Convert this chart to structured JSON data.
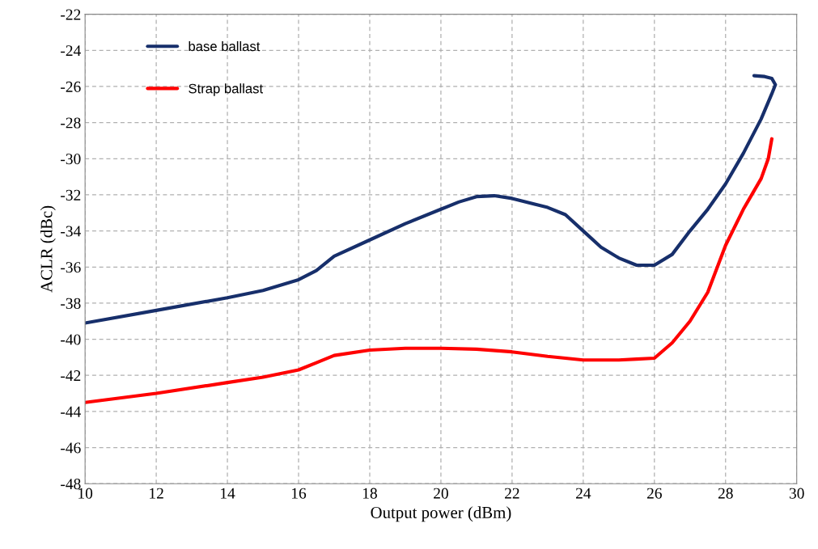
{
  "chart_data": {
    "type": "line",
    "xlabel": "Output power (dBm)",
    "ylabel": "ACLR (dBc)",
    "xlim": [
      10,
      30
    ],
    "xticks": [
      10,
      12,
      14,
      16,
      18,
      20,
      22,
      24,
      26,
      28,
      30
    ],
    "ylim": [
      -48,
      -22
    ],
    "yticks": [
      -48,
      -46,
      -44,
      -42,
      -40,
      -38,
      -36,
      -34,
      -32,
      -30,
      -28,
      -26,
      -24,
      -22
    ],
    "grid": true,
    "legend": "top left",
    "marker": "none",
    "line_style": "solid",
    "series": [
      {
        "name": "base ballast",
        "color": "#172f6b",
        "x": [
          10,
          12,
          14,
          15,
          16,
          16.5,
          17,
          18,
          19,
          20,
          20.5,
          21,
          21.5,
          22,
          23,
          23.5,
          24,
          24.5,
          25,
          25.5,
          26,
          26.5,
          27,
          27.5,
          28,
          28.5,
          29,
          29.3,
          29.4,
          29.3,
          29.1,
          28.8
        ],
        "values": [
          -39.1,
          -38.4,
          -37.7,
          -37.3,
          -36.7,
          -36.2,
          -35.4,
          -34.5,
          -33.6,
          -32.8,
          -32.4,
          -32.1,
          -32.05,
          -32.2,
          -32.7,
          -33.1,
          -34.0,
          -34.9,
          -35.5,
          -35.9,
          -35.9,
          -35.3,
          -34.0,
          -32.8,
          -31.4,
          -29.7,
          -27.8,
          -26.4,
          -25.9,
          -25.55,
          -25.45,
          -25.4
        ]
      },
      {
        "name": "Strap ballast",
        "color": "#ff0000",
        "x": [
          10,
          12,
          14,
          15,
          16,
          16.5,
          17,
          18,
          19,
          20,
          21,
          22,
          23,
          24,
          25,
          25.5,
          26,
          26.5,
          27,
          27.5,
          28,
          28.5,
          29,
          29.2,
          29.3
        ],
        "values": [
          -43.5,
          -43.0,
          -42.4,
          -42.1,
          -41.7,
          -41.3,
          -40.9,
          -40.6,
          -40.5,
          -40.5,
          -40.55,
          -40.7,
          -40.95,
          -41.15,
          -41.15,
          -41.1,
          -41.05,
          -40.2,
          -39.0,
          -37.4,
          -34.8,
          -32.8,
          -31.1,
          -30.0,
          -28.9
        ]
      }
    ]
  }
}
